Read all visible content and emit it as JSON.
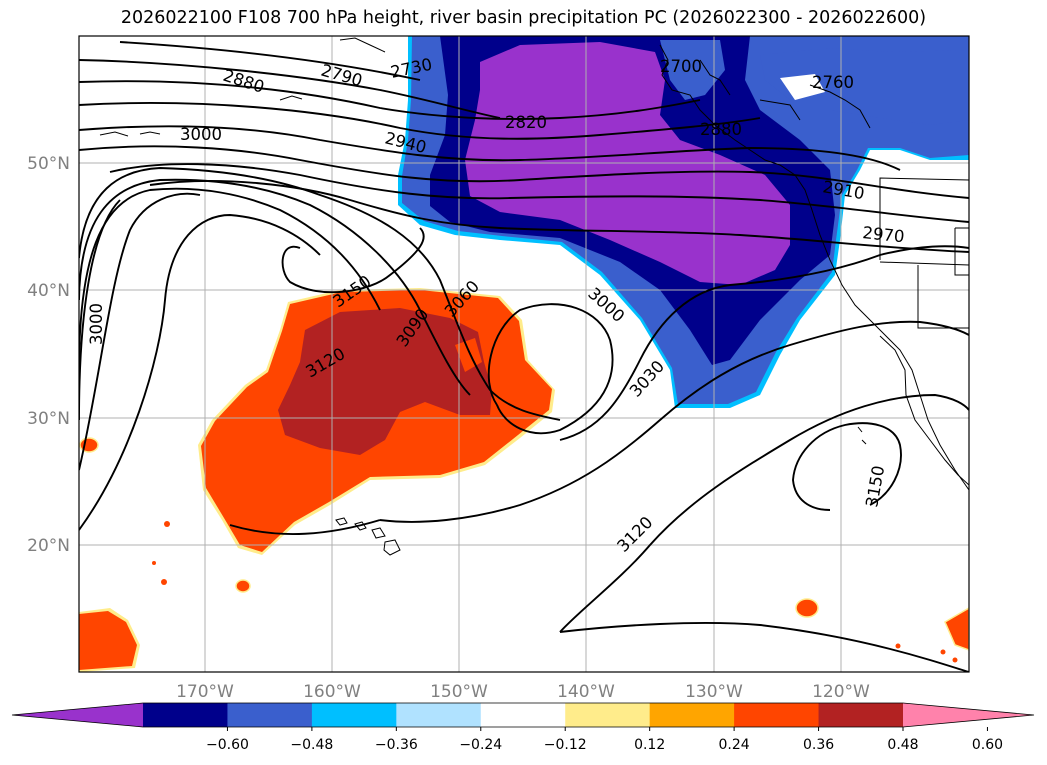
{
  "title": "2026022100 F108 700 hPa height, river basin precipitation PC (2026022300 - 2026022600)",
  "latitude_labels": [
    "50°N",
    "40°N",
    "30°N",
    "20°N"
  ],
  "longitude_labels": [
    "170°W",
    "160°W",
    "150°W",
    "140°W",
    "130°W",
    "120°W"
  ],
  "contour_labels": [
    "2880",
    "2790",
    "2730",
    "2700",
    "2760",
    "3000",
    "2940",
    "2820",
    "2880",
    "2910",
    "2970",
    "3150",
    "3060",
    "3090",
    "3000",
    "3120",
    "3030",
    "3000",
    "3150",
    "3120"
  ],
  "colorbar": {
    "ticks": [
      "−0.60",
      "−0.48",
      "−0.36",
      "−0.24",
      "−0.12",
      "0.12",
      "0.24",
      "0.36",
      "0.48",
      "0.60"
    ],
    "colors": [
      "#9932cc",
      "#00008b",
      "#3a5fcd",
      "#00bfff",
      "#b0e2ff",
      "#ffffff",
      "#ffec8b",
      "#ffa500",
      "#ff4500",
      "#b22222",
      "#ff82ab"
    ]
  }
}
